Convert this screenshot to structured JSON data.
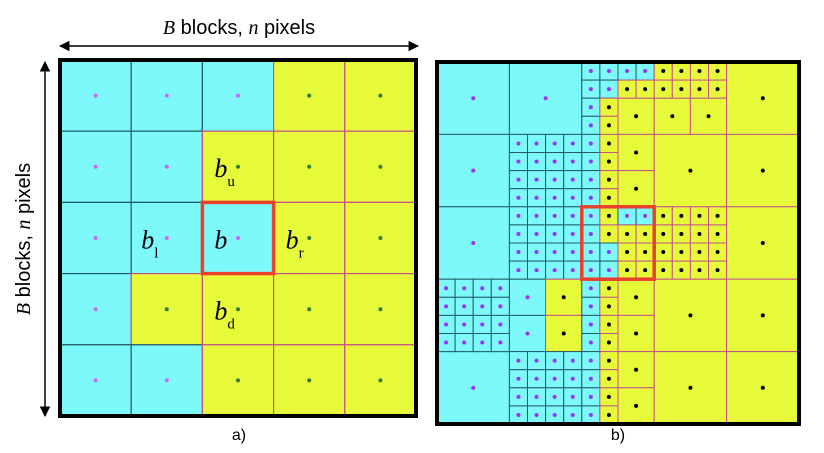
{
  "top_label": {
    "var": "B",
    "text1": " blocks, ",
    "var2": "n",
    "text2": " pixels"
  },
  "side_label": {
    "var": "B",
    "text1": " blocks, ",
    "var2": "n",
    "text2": " pixels"
  },
  "panel_a": {
    "caption": "a)",
    "grid_size": 5,
    "cells": [
      [
        "c",
        "c",
        "c",
        "y",
        "y"
      ],
      [
        "c",
        "c",
        "y",
        "y",
        "y"
      ],
      [
        "c",
        "c",
        "c",
        "y",
        "y"
      ],
      [
        "c",
        "y",
        "y",
        "y",
        "y"
      ],
      [
        "c",
        "c",
        "y",
        "y",
        "y"
      ]
    ],
    "labels": [
      {
        "base": "b",
        "sub": "u"
      },
      {
        "base": "b",
        "sub": "l"
      },
      {
        "base": "b",
        "sub": ""
      },
      {
        "base": "b",
        "sub": "r"
      },
      {
        "base": "b",
        "sub": "d"
      }
    ]
  },
  "panel_b": {
    "caption": "b)"
  },
  "colors": {
    "cyan": "#7ef9fb",
    "yellow": "#e6fa3a",
    "border": "#000000",
    "highlight": "#e8412c",
    "cyan_grid": "#1f5c66",
    "yellow_grid": "#c5508a",
    "dot_cyan": "#cc66ff",
    "dot_yellow": "#2e7d32"
  }
}
